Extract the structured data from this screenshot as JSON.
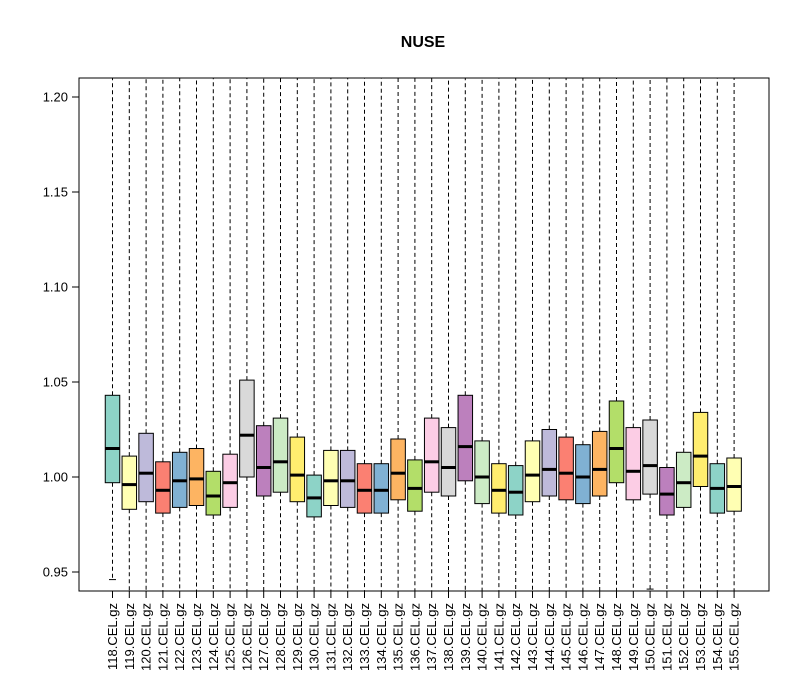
{
  "chart_data": {
    "type": "box",
    "title": "NUSE",
    "xlabel": "",
    "ylabel": "",
    "ylim": [
      0.94,
      1.21
    ],
    "yticks": [
      0.95,
      1.0,
      1.05,
      1.1,
      1.15,
      1.2
    ],
    "ytick_labels": [
      "0.95",
      "1.00",
      "1.05",
      "1.10",
      "1.15",
      "1.20"
    ],
    "grid": false,
    "legend": "none",
    "categories": [
      "118.CEL.gz",
      "119.CEL.gz",
      "120.CEL.gz",
      "121.CEL.gz",
      "122.CEL.gz",
      "123.CEL.gz",
      "124.CEL.gz",
      "125.CEL.gz",
      "126.CEL.gz",
      "127.CEL.gz",
      "128.CEL.gz",
      "129.CEL.gz",
      "130.CEL.gz",
      "131.CEL.gz",
      "132.CEL.gz",
      "133.CEL.gz",
      "134.CEL.gz",
      "135.CEL.gz",
      "136.CEL.gz",
      "137.CEL.gz",
      "138.CEL.gz",
      "139.CEL.gz",
      "140.CEL.gz",
      "141.CEL.gz",
      "142.CEL.gz",
      "143.CEL.gz",
      "144.CEL.gz",
      "145.CEL.gz",
      "146.CEL.gz",
      "147.CEL.gz",
      "148.CEL.gz",
      "149.CEL.gz",
      "150.CEL.gz",
      "151.CEL.gz",
      "152.CEL.gz",
      "153.CEL.gz",
      "154.CEL.gz",
      "155.CEL.gz"
    ],
    "boxes": [
      {
        "q1": 0.997,
        "median": 1.015,
        "q3": 1.043,
        "whisker_low": 0.946,
        "whisker_high": 1.21,
        "color": "#8DD3C7"
      },
      {
        "q1": 0.983,
        "median": 0.996,
        "q3": 1.011,
        "whisker_low": 0.94,
        "whisker_high": 1.21,
        "color": "#FFFFB3"
      },
      {
        "q1": 0.987,
        "median": 1.002,
        "q3": 1.023,
        "whisker_low": 0.94,
        "whisker_high": 1.21,
        "color": "#BEBADA"
      },
      {
        "q1": 0.981,
        "median": 0.993,
        "q3": 1.008,
        "whisker_low": 0.94,
        "whisker_high": 1.21,
        "color": "#FB8072"
      },
      {
        "q1": 0.984,
        "median": 0.998,
        "q3": 1.013,
        "whisker_low": 0.94,
        "whisker_high": 1.21,
        "color": "#80B1D3"
      },
      {
        "q1": 0.985,
        "median": 0.999,
        "q3": 1.015,
        "whisker_low": 0.94,
        "whisker_high": 1.21,
        "color": "#FDB462"
      },
      {
        "q1": 0.98,
        "median": 0.99,
        "q3": 1.003,
        "whisker_low": 0.94,
        "whisker_high": 1.21,
        "color": "#B3DE69"
      },
      {
        "q1": 0.984,
        "median": 0.997,
        "q3": 1.012,
        "whisker_low": 0.94,
        "whisker_high": 1.21,
        "color": "#FCCDE5"
      },
      {
        "q1": 1.0,
        "median": 1.022,
        "q3": 1.051,
        "whisker_low": 0.94,
        "whisker_high": 1.21,
        "color": "#D9D9D9"
      },
      {
        "q1": 0.99,
        "median": 1.005,
        "q3": 1.027,
        "whisker_low": 0.94,
        "whisker_high": 1.21,
        "color": "#BC80BD"
      },
      {
        "q1": 0.992,
        "median": 1.008,
        "q3": 1.031,
        "whisker_low": 0.94,
        "whisker_high": 1.21,
        "color": "#CCEBC5"
      },
      {
        "q1": 0.987,
        "median": 1.001,
        "q3": 1.021,
        "whisker_low": 0.94,
        "whisker_high": 1.21,
        "color": "#FFED6F"
      },
      {
        "q1": 0.979,
        "median": 0.989,
        "q3": 1.001,
        "whisker_low": 0.94,
        "whisker_high": 1.21,
        "color": "#8DD3C7"
      },
      {
        "q1": 0.985,
        "median": 0.998,
        "q3": 1.014,
        "whisker_low": 0.94,
        "whisker_high": 1.21,
        "color": "#FFFFB3"
      },
      {
        "q1": 0.984,
        "median": 0.998,
        "q3": 1.014,
        "whisker_low": 0.94,
        "whisker_high": 1.21,
        "color": "#BEBADA"
      },
      {
        "q1": 0.981,
        "median": 0.993,
        "q3": 1.007,
        "whisker_low": 0.94,
        "whisker_high": 1.21,
        "color": "#FB8072"
      },
      {
        "q1": 0.981,
        "median": 0.993,
        "q3": 1.007,
        "whisker_low": 0.94,
        "whisker_high": 1.21,
        "color": "#80B1D3"
      },
      {
        "q1": 0.988,
        "median": 1.002,
        "q3": 1.02,
        "whisker_low": 0.94,
        "whisker_high": 1.21,
        "color": "#FDB462"
      },
      {
        "q1": 0.982,
        "median": 0.994,
        "q3": 1.009,
        "whisker_low": 0.94,
        "whisker_high": 1.21,
        "color": "#B3DE69"
      },
      {
        "q1": 0.992,
        "median": 1.008,
        "q3": 1.031,
        "whisker_low": 0.94,
        "whisker_high": 1.21,
        "color": "#FCCDE5"
      },
      {
        "q1": 0.99,
        "median": 1.005,
        "q3": 1.026,
        "whisker_low": 0.94,
        "whisker_high": 1.21,
        "color": "#D9D9D9"
      },
      {
        "q1": 0.998,
        "median": 1.016,
        "q3": 1.043,
        "whisker_low": 0.94,
        "whisker_high": 1.21,
        "color": "#BC80BD"
      },
      {
        "q1": 0.986,
        "median": 1.0,
        "q3": 1.019,
        "whisker_low": 0.94,
        "whisker_high": 1.21,
        "color": "#CCEBC5"
      },
      {
        "q1": 0.981,
        "median": 0.993,
        "q3": 1.007,
        "whisker_low": 0.94,
        "whisker_high": 1.21,
        "color": "#FFED6F"
      },
      {
        "q1": 0.98,
        "median": 0.992,
        "q3": 1.006,
        "whisker_low": 0.94,
        "whisker_high": 1.21,
        "color": "#8DD3C7"
      },
      {
        "q1": 0.987,
        "median": 1.001,
        "q3": 1.019,
        "whisker_low": 0.94,
        "whisker_high": 1.21,
        "color": "#FFFFB3"
      },
      {
        "q1": 0.99,
        "median": 1.004,
        "q3": 1.025,
        "whisker_low": 0.94,
        "whisker_high": 1.21,
        "color": "#BEBADA"
      },
      {
        "q1": 0.988,
        "median": 1.002,
        "q3": 1.021,
        "whisker_low": 0.94,
        "whisker_high": 1.21,
        "color": "#FB8072"
      },
      {
        "q1": 0.986,
        "median": 1.0,
        "q3": 1.017,
        "whisker_low": 0.94,
        "whisker_high": 1.21,
        "color": "#80B1D3"
      },
      {
        "q1": 0.99,
        "median": 1.004,
        "q3": 1.024,
        "whisker_low": 0.94,
        "whisker_high": 1.21,
        "color": "#FDB462"
      },
      {
        "q1": 0.997,
        "median": 1.015,
        "q3": 1.04,
        "whisker_low": 0.94,
        "whisker_high": 1.21,
        "color": "#B3DE69"
      },
      {
        "q1": 0.988,
        "median": 1.003,
        "q3": 1.026,
        "whisker_low": 0.94,
        "whisker_high": 1.21,
        "color": "#FCCDE5"
      },
      {
        "q1": 0.991,
        "median": 1.006,
        "q3": 1.03,
        "whisker_low": 0.941,
        "whisker_high": 1.21,
        "color": "#D9D9D9"
      },
      {
        "q1": 0.98,
        "median": 0.991,
        "q3": 1.005,
        "whisker_low": 0.94,
        "whisker_high": 1.21,
        "color": "#BC80BD"
      },
      {
        "q1": 0.984,
        "median": 0.997,
        "q3": 1.013,
        "whisker_low": 0.94,
        "whisker_high": 1.21,
        "color": "#CCEBC5"
      },
      {
        "q1": 0.995,
        "median": 1.011,
        "q3": 1.034,
        "whisker_low": 0.94,
        "whisker_high": 1.21,
        "color": "#FFED6F"
      },
      {
        "q1": 0.981,
        "median": 0.994,
        "q3": 1.007,
        "whisker_low": 0.94,
        "whisker_high": 1.21,
        "color": "#8DD3C7"
      },
      {
        "q1": 0.982,
        "median": 0.995,
        "q3": 1.01,
        "whisker_low": 0.94,
        "whisker_high": 1.21,
        "color": "#FFFFB3"
      }
    ]
  }
}
